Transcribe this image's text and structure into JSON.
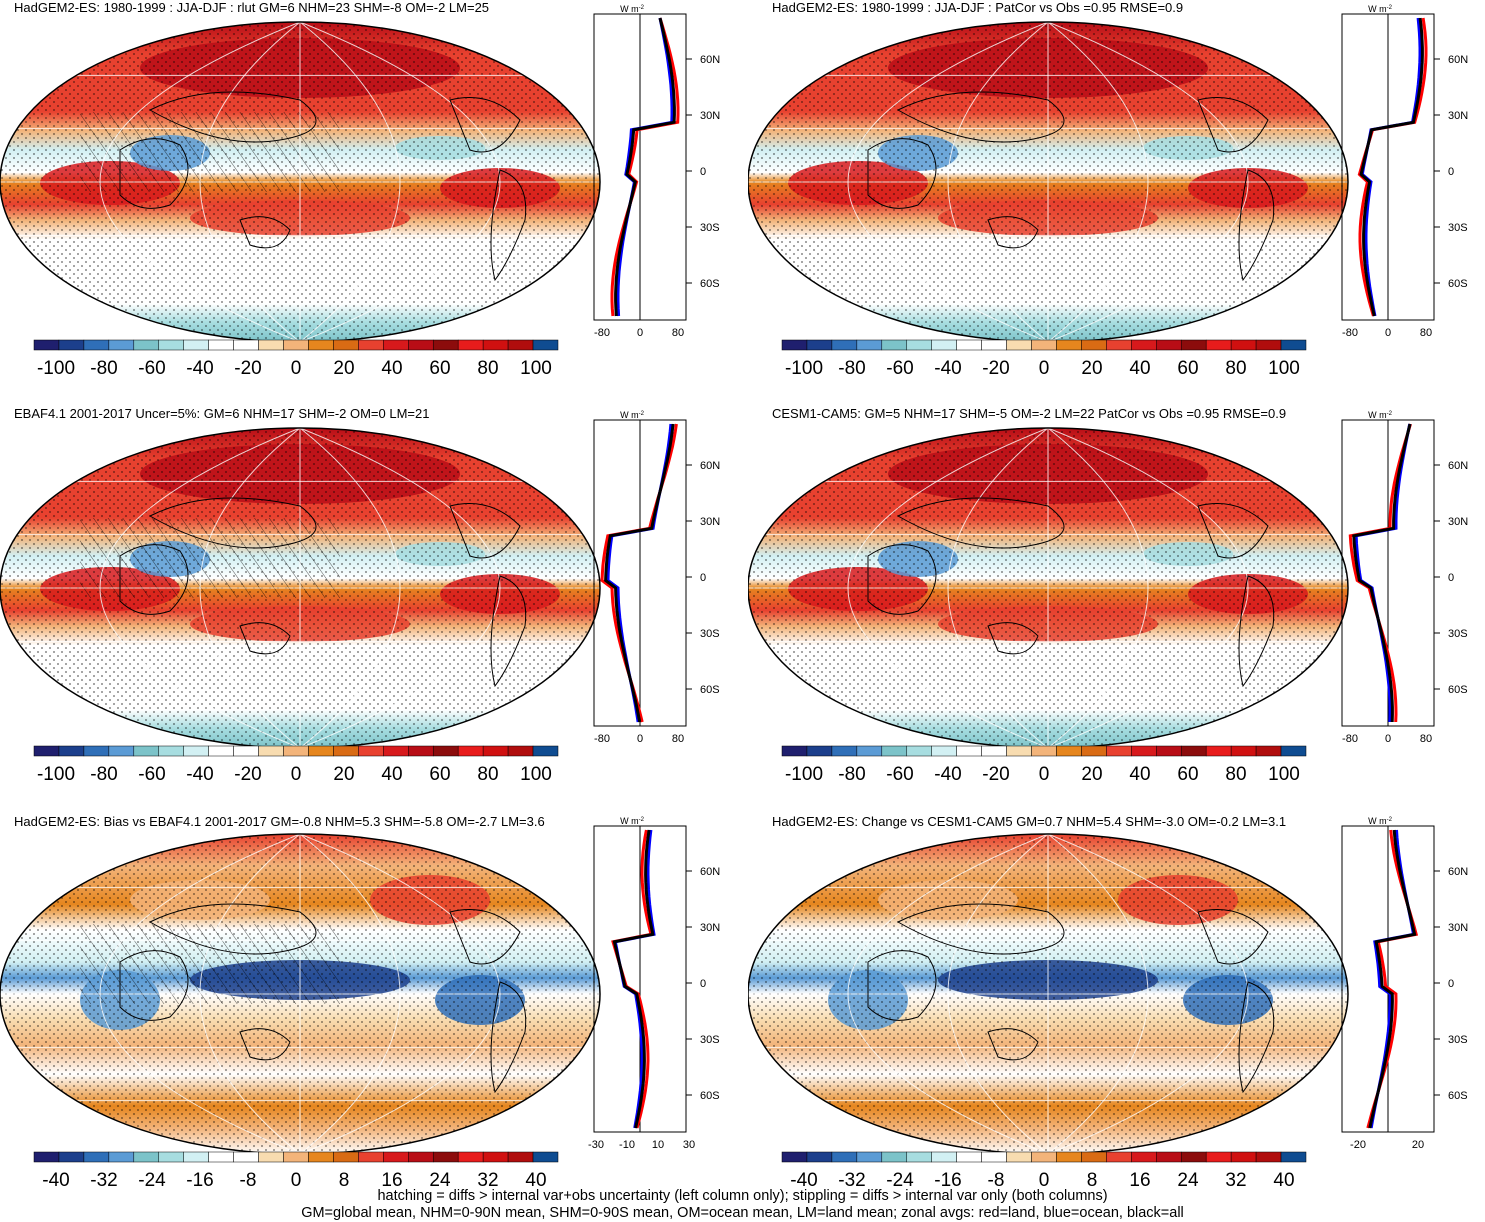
{
  "panels": [
    {
      "title": "HadGEM2-ES: 1980-1999 : JJA-DJF : rlut GM=6 NHM=23 SHM=-8 OM=-2 LM=25",
      "scale": "full",
      "hatch": true,
      "zx": [
        "-80",
        "0",
        "80"
      ]
    },
    {
      "title": "HadGEM2-ES: 1980-1999 : JJA-DJF : PatCor vs Obs =0.95 RMSE=0.9",
      "scale": "full",
      "hatch": false,
      "zx": [
        "-80",
        "0",
        "80"
      ]
    },
    {
      "title": "EBAF4.1 2001-2017 Uncer=5%: GM=6 NHM=17 SHM=-2 OM=0 LM=21",
      "scale": "full",
      "hatch": true,
      "zx": [
        "-80",
        "0",
        "80"
      ]
    },
    {
      "title": "CESM1-CAM5: GM=5 NHM=17 SHM=-5 OM=-2 LM=22 PatCor vs Obs =0.95 RMSE=0.9",
      "scale": "full",
      "hatch": false,
      "zx": [
        "-80",
        "0",
        "80"
      ]
    },
    {
      "title": "HadGEM2-ES: Bias vs EBAF4.1 2001-2017 GM=-0.8 NHM=5.3 SHM=-5.8 OM=-2.7 LM=3.6",
      "scale": "diff",
      "hatch": true,
      "zx": [
        "-30",
        "-10",
        "10",
        "30"
      ]
    },
    {
      "title": "HadGEM2-ES: Change vs CESM1-CAM5 GM=0.7 NHM=5.4 SHM=-3.0 OM=-0.2 LM=3.1",
      "scale": "diff",
      "hatch": false,
      "zx": [
        "-20",
        "20"
      ]
    }
  ],
  "lat_labels": [
    "60N",
    "30N",
    "0",
    "30S",
    "60S"
  ],
  "zonal_unit": "W m",
  "zonal_unit_sup": "-2",
  "colorbars": {
    "full_labels": [
      "-100",
      "-80",
      "-60",
      "-40",
      "-20",
      "0",
      "20",
      "40",
      "60",
      "80",
      "100"
    ],
    "diff_labels": [
      "-40",
      "-32",
      "-24",
      "-16",
      "-8",
      "0",
      "8",
      "16",
      "24",
      "32",
      "40"
    ],
    "colors": [
      "#1f1f6e",
      "#1c3f8c",
      "#2f6fb8",
      "#5b9bd5",
      "#7cc3c9",
      "#a7dde0",
      "#d2f0f3",
      "#ffffff",
      "#ffffff",
      "#f8dcb0",
      "#f3b47a",
      "#e6861e",
      "#d96b14",
      "#e8412f",
      "#d7191c",
      "#b80d16",
      "#8c0c0c",
      "#e81c1c",
      "#d01010",
      "#b00d0d",
      "#0f4c91"
    ]
  },
  "legend_colors": {
    "land": "#ff0000",
    "ocean": "#0000ff",
    "all": "#000000"
  },
  "footer": {
    "line1": "hatching = diffs > internal var+obs uncertainty (left column only); stippling = diffs > internal var only (both columns)",
    "line2": "GM=global mean, NHM=0-90N mean, SHM=0-90S mean, OM=ocean mean, LM=land mean; zonal avgs: red=land, blue=ocean, black=all"
  }
}
